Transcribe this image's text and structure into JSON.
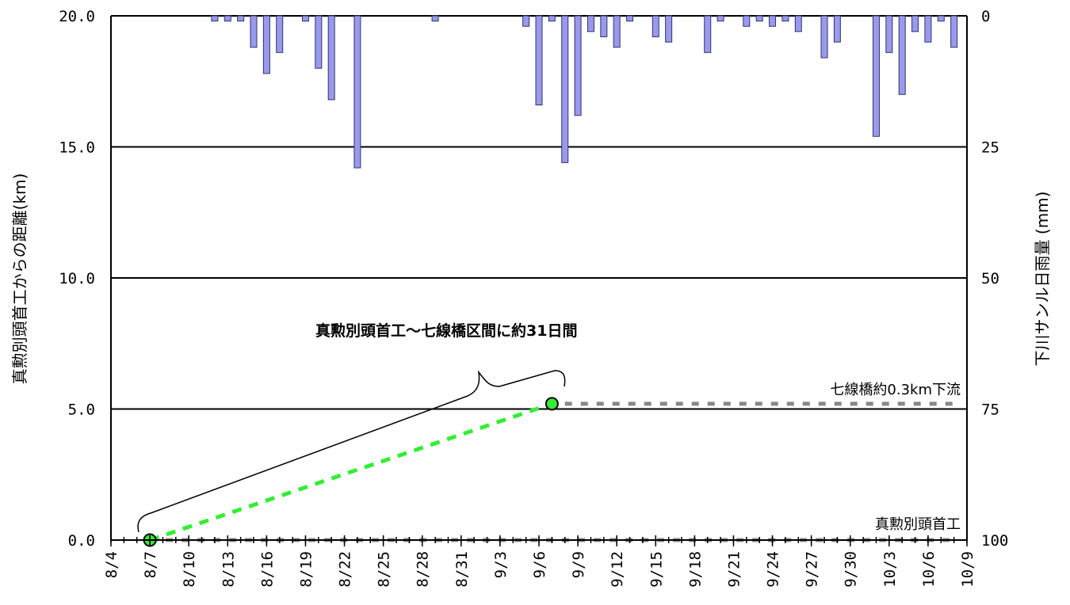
{
  "chart_data": {
    "type": "bar+line",
    "y_left": {
      "label": "真勲別頭首工からの距離(km)",
      "ylim": [
        0,
        20
      ],
      "ticks": [
        "0.0",
        "5.0",
        "10.0",
        "15.0",
        "20.0"
      ]
    },
    "y_right": {
      "label": "下川サンル日雨量 (mm)",
      "ylim": [
        0,
        100
      ],
      "inverted": true,
      "ticks": [
        "0",
        "25",
        "50",
        "75",
        "100"
      ]
    },
    "x": {
      "start": "8/4",
      "end": "10/9",
      "tick_labels": [
        "8/4",
        "8/7",
        "8/10",
        "8/13",
        "8/16",
        "8/19",
        "8/22",
        "8/25",
        "8/28",
        "8/31",
        "9/3",
        "9/6",
        "9/9",
        "9/12",
        "9/15",
        "9/18",
        "9/21",
        "9/24",
        "9/27",
        "9/30",
        "10/3",
        "10/6",
        "10/9"
      ]
    },
    "grid": {
      "horizontal": true
    },
    "rainfall": [
      {
        "date": "8/12",
        "mm": 1
      },
      {
        "date": "8/13",
        "mm": 1
      },
      {
        "date": "8/14",
        "mm": 1
      },
      {
        "date": "8/15",
        "mm": 6
      },
      {
        "date": "8/16",
        "mm": 11
      },
      {
        "date": "8/17",
        "mm": 7
      },
      {
        "date": "8/19",
        "mm": 1
      },
      {
        "date": "8/20",
        "mm": 10
      },
      {
        "date": "8/21",
        "mm": 16
      },
      {
        "date": "8/23",
        "mm": 29
      },
      {
        "date": "8/29",
        "mm": 1
      },
      {
        "date": "9/5",
        "mm": 2
      },
      {
        "date": "9/6",
        "mm": 17
      },
      {
        "date": "9/7",
        "mm": 1
      },
      {
        "date": "9/8",
        "mm": 28
      },
      {
        "date": "9/9",
        "mm": 19
      },
      {
        "date": "9/10",
        "mm": 3
      },
      {
        "date": "9/11",
        "mm": 4
      },
      {
        "date": "9/12",
        "mm": 6
      },
      {
        "date": "9/13",
        "mm": 1
      },
      {
        "date": "9/15",
        "mm": 4
      },
      {
        "date": "9/16",
        "mm": 5
      },
      {
        "date": "9/19",
        "mm": 7
      },
      {
        "date": "9/20",
        "mm": 1
      },
      {
        "date": "9/22",
        "mm": 2
      },
      {
        "date": "9/23",
        "mm": 1
      },
      {
        "date": "9/24",
        "mm": 2
      },
      {
        "date": "9/25",
        "mm": 1
      },
      {
        "date": "9/26",
        "mm": 3
      },
      {
        "date": "9/28",
        "mm": 8
      },
      {
        "date": "9/29",
        "mm": 5
      },
      {
        "date": "10/2",
        "mm": 23
      },
      {
        "date": "10/3",
        "mm": 7
      },
      {
        "date": "10/4",
        "mm": 15
      },
      {
        "date": "10/5",
        "mm": 3
      },
      {
        "date": "10/6",
        "mm": 5
      },
      {
        "date": "10/7",
        "mm": 1
      },
      {
        "date": "10/8",
        "mm": 6
      }
    ],
    "series": [
      {
        "kind": "fish-position-dashed",
        "color": "#33ee33",
        "points": [
          {
            "date": "8/7",
            "km": 0.0
          },
          {
            "date": "9/7",
            "km": 5.2
          }
        ]
      },
      {
        "kind": "reference-dashed",
        "color": "#888888",
        "points": [
          {
            "date": "8/7",
            "km": 0.0
          },
          {
            "date": "10/8",
            "km": 0.0
          }
        ]
      },
      {
        "kind": "reference-dashed",
        "color": "#888888",
        "points": [
          {
            "date": "9/8",
            "km": 5.2
          },
          {
            "date": "10/8",
            "km": 5.2
          }
        ]
      }
    ],
    "markers": [
      {
        "date": "8/7",
        "km": 0.0,
        "color": "#33ee33"
      },
      {
        "date": "9/7",
        "km": 5.2,
        "color": "#33ee33"
      }
    ],
    "annotations": {
      "bracket_label": "真勲別頭首工～七線橋区間に約31日間",
      "upper_ref_label": "七線橋約0.3km下流",
      "lower_ref_label": "真勲別頭首工"
    },
    "colors": {
      "rain_fill": "#9999ee",
      "rain_stroke": "#333366"
    }
  }
}
